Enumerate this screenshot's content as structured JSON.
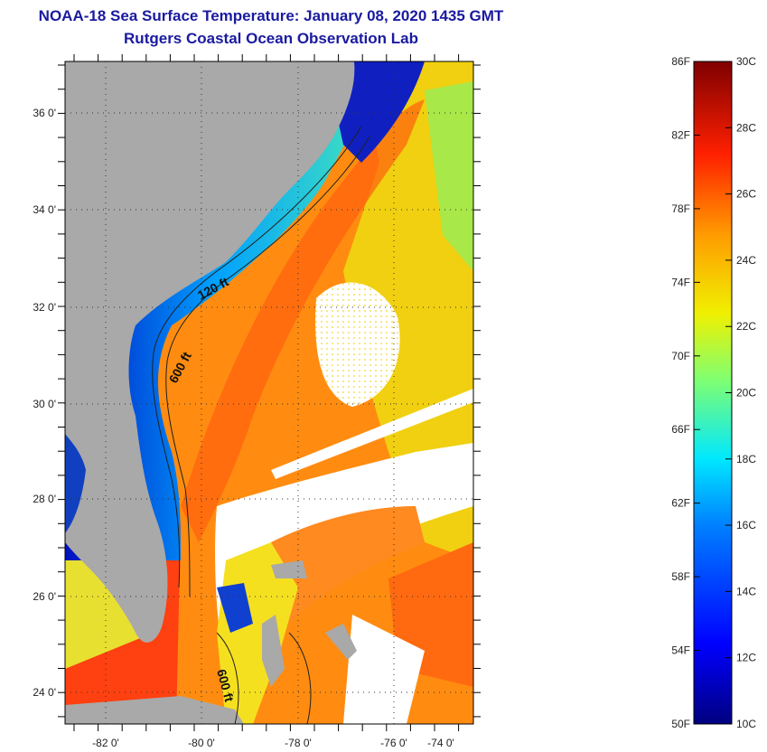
{
  "title": {
    "line1": "NOAA-18 Sea Surface Temperature:  January 08, 2020 1435 GMT",
    "line2": "Rutgers Coastal Ocean Observation Lab"
  },
  "map": {
    "lat_labels": [
      "36 0'",
      "34 0'",
      "32 0'",
      "30 0'",
      "28 0'",
      "26 0'",
      "24 0'"
    ],
    "lon_labels": [
      "-82 0'",
      "-80 0'",
      "-78 0'",
      "-76 0'",
      "-74 0'"
    ],
    "contour_labels": [
      "120 ft",
      "600 ft",
      "600 ft"
    ],
    "land_color": "#a9a9a9"
  },
  "colorbar": {
    "f_labels": [
      "86F",
      "82F",
      "78F",
      "74F",
      "70F",
      "66F",
      "62F",
      "58F",
      "54F",
      "50F"
    ],
    "c_labels": [
      "30C",
      "28C",
      "26C",
      "24C",
      "22C",
      "20C",
      "18C",
      "16C",
      "14C",
      "12C",
      "10C"
    ],
    "colors": [
      "#00007f",
      "#0000ff",
      "#007fff",
      "#00ffff",
      "#7fff7f",
      "#ffff00",
      "#ff7f00",
      "#ff0000",
      "#7f0000"
    ]
  }
}
